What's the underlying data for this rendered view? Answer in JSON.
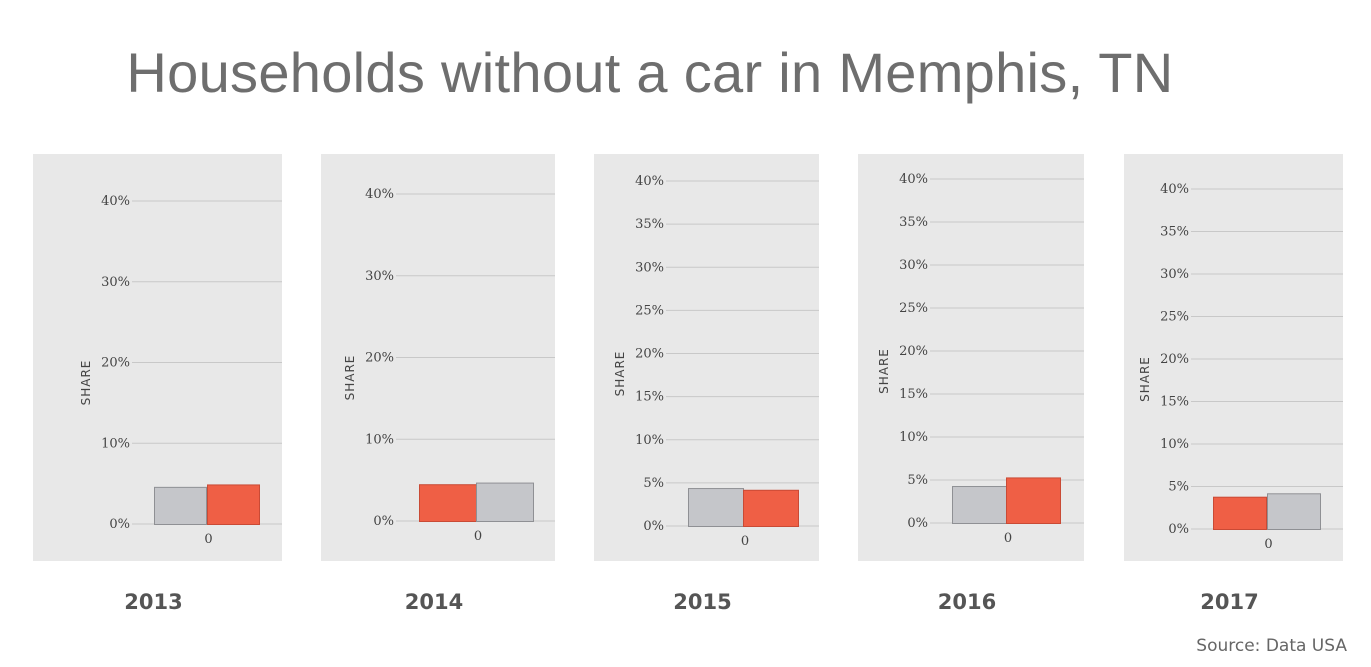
{
  "title": "Households without a car in Memphis, TN",
  "source": "Source: Data USA",
  "colors": {
    "panel_bg": "#e8e8e8",
    "highlight": "#ef5f45",
    "other": "#c5c6ca",
    "grid": "#c8c8c8"
  },
  "chart_data": [
    {
      "type": "bar",
      "year_label": "2013",
      "ylabel": "SHARE",
      "x_tick": "0",
      "ylim": [
        0,
        40
      ],
      "y_ticks": [
        "0%",
        "10%",
        "20%",
        "30%",
        "40%"
      ],
      "y_tick_values": [
        0,
        10,
        20,
        30,
        40
      ],
      "bars": [
        {
          "value": 4.6,
          "color": "#c5c6ca"
        },
        {
          "value": 4.9,
          "color": "#ef5f45"
        }
      ]
    },
    {
      "type": "bar",
      "year_label": "2014",
      "ylabel": "SHARE",
      "x_tick": "0",
      "ylim": [
        0,
        40
      ],
      "y_ticks": [
        "0%",
        "10%",
        "20%",
        "30%",
        "40%"
      ],
      "y_tick_values": [
        0,
        10,
        20,
        30,
        40
      ],
      "bars": [
        {
          "value": 4.5,
          "color": "#ef5f45"
        },
        {
          "value": 4.7,
          "color": "#c5c6ca"
        }
      ]
    },
    {
      "type": "bar",
      "year_label": "2015",
      "ylabel": "SHARE",
      "x_tick": "0",
      "ylim": [
        0,
        40
      ],
      "y_ticks": [
        "0%",
        "5%",
        "10%",
        "15%",
        "20%",
        "25%",
        "30%",
        "35%",
        "40%"
      ],
      "y_tick_values": [
        0,
        5,
        10,
        15,
        20,
        25,
        30,
        35,
        40
      ],
      "bars": [
        {
          "value": 4.4,
          "color": "#c5c6ca"
        },
        {
          "value": 4.2,
          "color": "#ef5f45"
        }
      ]
    },
    {
      "type": "bar",
      "year_label": "2016",
      "ylabel": "SHARE",
      "x_tick": "0",
      "ylim": [
        0,
        40
      ],
      "y_ticks": [
        "0%",
        "5%",
        "10%",
        "15%",
        "20%",
        "25%",
        "30%",
        "35%",
        "40%"
      ],
      "y_tick_values": [
        0,
        5,
        10,
        15,
        20,
        25,
        30,
        35,
        40
      ],
      "bars": [
        {
          "value": 4.3,
          "color": "#c5c6ca"
        },
        {
          "value": 5.3,
          "color": "#ef5f45"
        }
      ]
    },
    {
      "type": "bar",
      "year_label": "2017",
      "ylabel": "SHARE",
      "x_tick": "0",
      "ylim": [
        0,
        40
      ],
      "y_ticks": [
        "0%",
        "5%",
        "10%",
        "15%",
        "20%",
        "25%",
        "30%",
        "35%",
        "40%"
      ],
      "y_tick_values": [
        0,
        5,
        10,
        15,
        20,
        25,
        30,
        35,
        40
      ],
      "bars": [
        {
          "value": 3.8,
          "color": "#ef5f45"
        },
        {
          "value": 4.2,
          "color": "#c5c6ca"
        }
      ]
    }
  ]
}
